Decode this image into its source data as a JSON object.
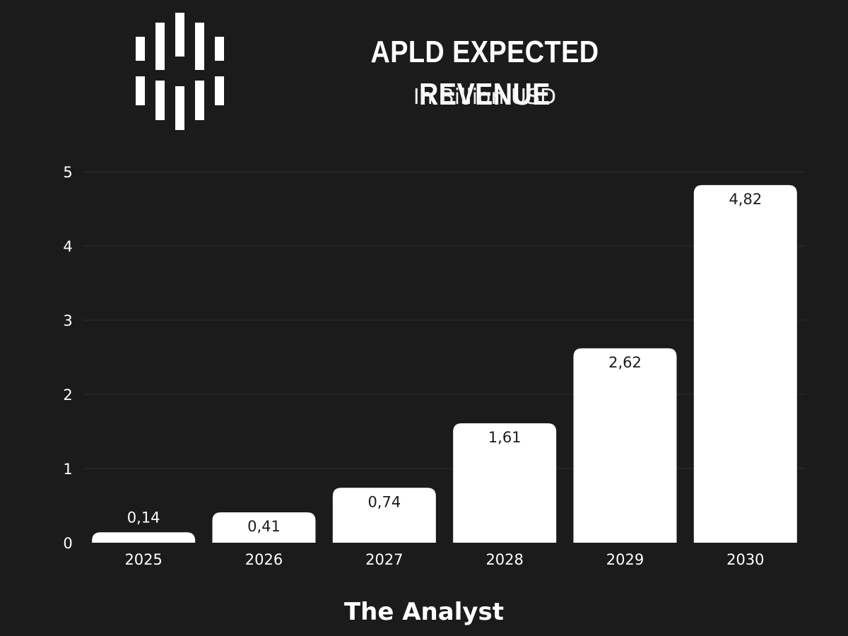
{
  "colors": {
    "background": "#1b1b1b",
    "bar": "#ffffff",
    "gridline": "#2e2e2e",
    "text": "#ffffff",
    "bar_label": "#1b1b1b"
  },
  "logo": {
    "icon": "vertical-bars-logo-icon"
  },
  "footer": {
    "text": "The Analyst"
  },
  "chart_data": {
    "type": "bar",
    "title": "APLD EXPECTED REVENUE",
    "subtitle": "In Billion USD",
    "xlabel": "",
    "ylabel": "",
    "categories": [
      "2025",
      "2026",
      "2027",
      "2028",
      "2029",
      "2030"
    ],
    "values": [
      0.14,
      0.41,
      0.74,
      1.61,
      2.62,
      4.82
    ],
    "value_labels": [
      "0,14",
      "0,41",
      "0,74",
      "1,61",
      "2,62",
      "4,82"
    ],
    "ylim": [
      0,
      5
    ],
    "yticks": [
      0,
      1,
      2,
      3,
      4,
      5
    ],
    "grid": true,
    "legend": "none"
  }
}
